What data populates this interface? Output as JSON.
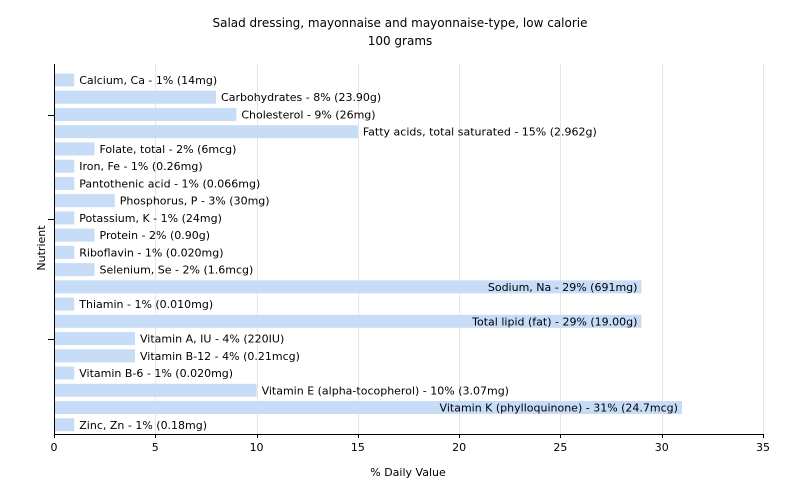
{
  "chart_data": {
    "type": "bar",
    "orientation": "horizontal",
    "title": "Salad dressing, mayonnaise and mayonnaise-type, low calorie",
    "subtitle": "100 grams",
    "xlabel": "% Daily Value",
    "ylabel": "Nutrient",
    "xlim": [
      0,
      35
    ],
    "xticks": [
      0,
      5,
      10,
      15,
      20,
      25,
      30,
      35
    ],
    "grid": "vertical",
    "bar_color": "#c6dcf7",
    "categories": [
      "Calcium, Ca",
      "Carbohydrates",
      "Cholesterol",
      "Fatty acids, total saturated",
      "Folate, total",
      "Iron, Fe",
      "Pantothenic acid",
      "Phosphorus, P",
      "Potassium, K",
      "Protein",
      "Riboflavin",
      "Selenium, Se",
      "Sodium, Na",
      "Thiamin",
      "Total lipid (fat)",
      "Vitamin A, IU",
      "Vitamin B-12",
      "Vitamin B-6",
      "Vitamin E (alpha-tocopherol)",
      "Vitamin K (phylloquinone)",
      "Zinc, Zn"
    ],
    "values": [
      1,
      8,
      9,
      15,
      2,
      1,
      1,
      3,
      1,
      2,
      1,
      2,
      29,
      1,
      29,
      4,
      4,
      1,
      10,
      31,
      1
    ],
    "labels": [
      "Calcium, Ca - 1% (14mg)",
      "Carbohydrates - 8% (23.90g)",
      "Cholesterol - 9% (26mg)",
      "Fatty acids, total saturated - 15% (2.962g)",
      "Folate, total - 2% (6mcg)",
      "Iron, Fe - 1% (0.26mg)",
      "Pantothenic acid - 1% (0.066mg)",
      "Phosphorus, P - 3% (30mg)",
      "Potassium, K - 1% (24mg)",
      "Protein - 2% (0.90g)",
      "Riboflavin - 1% (0.020mg)",
      "Selenium, Se - 2% (1.6mcg)",
      "Sodium, Na - 29% (691mg)",
      "Thiamin - 1% (0.010mg)",
      "Total lipid (fat) - 29% (19.00g)",
      "Vitamin A, IU - 4% (220IU)",
      "Vitamin B-12 - 4% (0.21mcg)",
      "Vitamin B-6 - 1% (0.020mg)",
      "Vitamin E (alpha-tocopherol) - 10% (3.07mg)",
      "Vitamin K (phylloquinone) - 31% (24.7mcg)",
      "Zinc, Zn - 1% (0.18mg)"
    ]
  }
}
